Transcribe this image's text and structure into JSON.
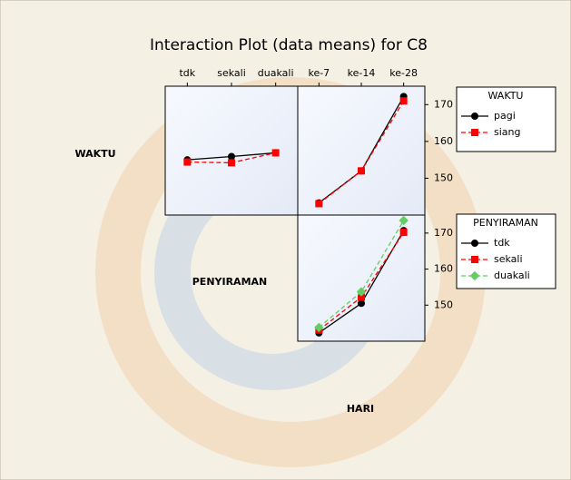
{
  "chart_data": {
    "type": "line",
    "title": "Interaction Plot (data means) for C8",
    "factors": [
      "WAKTU",
      "PENYIRAMAN",
      "HARI"
    ],
    "panels": [
      {
        "categories": [
          "tdk",
          "sekali",
          "duakali"
        ],
        "ylim": [
          140,
          175
        ],
        "series": [
          {
            "name": "pagi",
            "color": "#000000",
            "marker": "circle",
            "dashed": false,
            "values": [
              155.0,
              155.9,
              156.9
            ]
          },
          {
            "name": "siang",
            "color": "#ff0000",
            "marker": "square",
            "dashed": true,
            "values": [
              154.4,
              154.2,
              156.9
            ]
          }
        ]
      },
      {
        "categories": [
          "ke-7",
          "ke-14",
          "ke-28"
        ],
        "ylim": [
          140,
          175
        ],
        "yticks": [
          150,
          160,
          170
        ],
        "series": [
          {
            "name": "pagi",
            "color": "#000000",
            "marker": "circle",
            "dashed": false,
            "values": [
              143.3,
              152.0,
              172.2
            ]
          },
          {
            "name": "siang",
            "color": "#ff0000",
            "marker": "square",
            "dashed": true,
            "values": [
              143.1,
              152.0,
              171.0
            ]
          }
        ]
      },
      {
        "ylim": [
          140,
          175
        ],
        "yticks": [
          150,
          160,
          170
        ],
        "series": [
          {
            "name": "tdk",
            "color": "#000000",
            "marker": "circle",
            "dashed": false,
            "values": [
              142.3,
              150.5,
              170.7
            ]
          },
          {
            "name": "sekali",
            "color": "#ff0000",
            "marker": "square",
            "dashed": true,
            "values": [
              143.1,
              152.2,
              170.2
            ]
          },
          {
            "name": "duakali",
            "color": "#66cc66",
            "marker": "diamond",
            "dashed": true,
            "values": [
              143.8,
              153.7,
              173.5
            ]
          }
        ]
      }
    ]
  }
}
